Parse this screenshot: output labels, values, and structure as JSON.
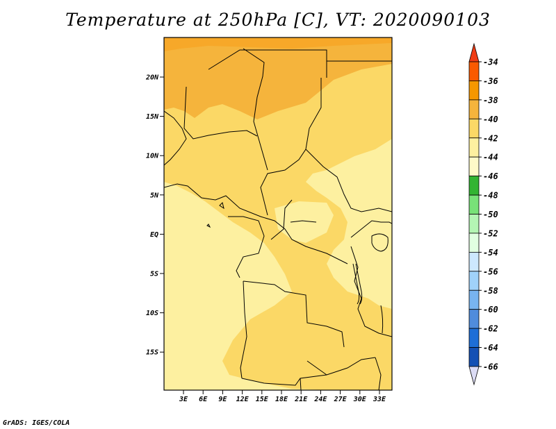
{
  "title": "Temperature at 250hPa [C], VT: 2020090103",
  "footer": "GrADS: IGES/COLA",
  "map": {
    "lat_ticks": [
      "20N",
      "15N",
      "10N",
      "5N",
      "EQ",
      "5S",
      "10S",
      "15S"
    ],
    "lon_ticks": [
      "3E",
      "6E",
      "9E",
      "12E",
      "15E",
      "18E",
      "21E",
      "24E",
      "27E",
      "30E",
      "33E"
    ]
  },
  "legend": {
    "levels": [
      {
        "label": "-34",
        "color": "#fa5a00"
      },
      {
        "label": "-36",
        "color": "#f59700"
      },
      {
        "label": "-38",
        "color": "#f5b43c"
      },
      {
        "label": "-40",
        "color": "#fbd866"
      },
      {
        "label": "-42",
        "color": "#fdf0a0"
      },
      {
        "label": "-44",
        "color": "#fefac8"
      },
      {
        "label": "-46",
        "color": "#32b432"
      },
      {
        "label": "-48",
        "color": "#78e278"
      },
      {
        "label": "-50",
        "color": "#b4f5b4"
      },
      {
        "label": "-52",
        "color": "#e1ffe1"
      },
      {
        "label": "-54",
        "color": "#cde8ff"
      },
      {
        "label": "-56",
        "color": "#a0d2fa"
      },
      {
        "label": "-58",
        "color": "#78b4f0"
      },
      {
        "label": "-60",
        "color": "#508cdc"
      },
      {
        "label": "-62",
        "color": "#1e6ed7"
      },
      {
        "label": "-64",
        "color": "#1450b4"
      },
      {
        "label": "-66",
        "color": "#0a2896"
      }
    ],
    "top_color": "#f03c14",
    "bottom_color": "#dcdcf5"
  }
}
